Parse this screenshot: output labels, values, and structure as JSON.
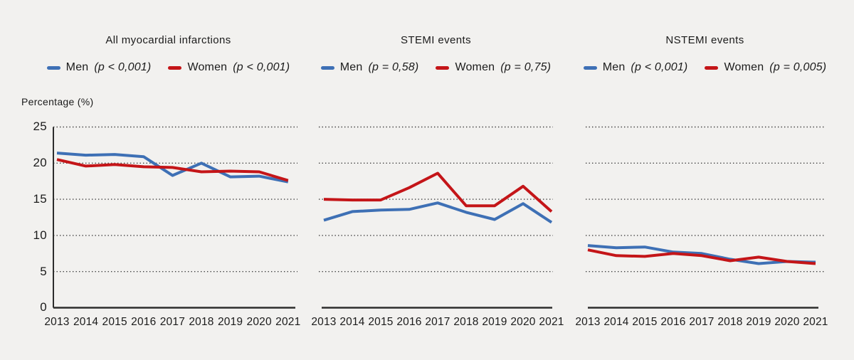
{
  "figure": {
    "background": "#f2f1ef",
    "y_axis_label": "Percentage (%)"
  },
  "colors": {
    "men": "#3e70b5",
    "women": "#c41518",
    "grid": "#3f3f3f",
    "axis": "#2d2d2d",
    "text": "#1b1b1b"
  },
  "y_axis": {
    "ticks": [
      "25",
      "20",
      "15",
      "10",
      "5",
      "0"
    ]
  },
  "years": [
    "2013",
    "2014",
    "2015",
    "2016",
    "2017",
    "2018",
    "2019",
    "2020",
    "2021"
  ],
  "chart_data": [
    {
      "type": "line",
      "title": "All myocardial infarctions",
      "xlabel": "",
      "ylabel": "Percentage (%)",
      "ylim": [
        0,
        25
      ],
      "yticks": [
        0,
        5,
        10,
        15,
        20,
        25
      ],
      "grid": "dotted-horizontal",
      "legend_position": "top",
      "categories": [
        "2013",
        "2014",
        "2015",
        "2016",
        "2017",
        "2018",
        "2019",
        "2020",
        "2021"
      ],
      "series": [
        {
          "name": "Men",
          "p_label": "(p < 0,001)",
          "color": "#3e70b5",
          "values": [
            21.4,
            21.1,
            21.2,
            20.9,
            18.3,
            20.0,
            18.1,
            18.2,
            17.4
          ]
        },
        {
          "name": "Women",
          "p_label": "(p < 0,001)",
          "color": "#c41518",
          "values": [
            20.5,
            19.6,
            19.8,
            19.5,
            19.4,
            18.8,
            18.9,
            18.8,
            17.6
          ]
        }
      ]
    },
    {
      "type": "line",
      "title": "STEMI events",
      "xlabel": "",
      "ylabel": "Percentage (%)",
      "ylim": [
        0,
        25
      ],
      "yticks": [
        0,
        5,
        10,
        15,
        20,
        25
      ],
      "grid": "dotted-horizontal",
      "legend_position": "top",
      "categories": [
        "2013",
        "2014",
        "2015",
        "2016",
        "2017",
        "2018",
        "2019",
        "2020",
        "2021"
      ],
      "series": [
        {
          "name": "Men",
          "p_label": "(p = 0,58)",
          "color": "#3e70b5",
          "values": [
            12.1,
            13.3,
            13.5,
            13.6,
            14.5,
            13.2,
            12.2,
            14.4,
            11.8
          ]
        },
        {
          "name": "Women",
          "p_label": "(p = 0,75)",
          "color": "#c41518",
          "values": [
            15.0,
            14.9,
            14.9,
            16.6,
            18.6,
            14.1,
            14.1,
            16.8,
            13.3
          ]
        }
      ]
    },
    {
      "type": "line",
      "title": "NSTEMI events",
      "xlabel": "",
      "ylabel": "Percentage (%)",
      "ylim": [
        0,
        25
      ],
      "yticks": [
        0,
        5,
        10,
        15,
        20,
        25
      ],
      "grid": "dotted-horizontal",
      "legend_position": "top",
      "categories": [
        "2013",
        "2014",
        "2015",
        "2016",
        "2017",
        "2018",
        "2019",
        "2020",
        "2021"
      ],
      "series": [
        {
          "name": "Men",
          "p_label": "(p < 0,001)",
          "color": "#3e70b5",
          "values": [
            8.6,
            8.3,
            8.4,
            7.7,
            7.5,
            6.7,
            6.1,
            6.4,
            6.3
          ]
        },
        {
          "name": "Women",
          "p_label": "(p = 0,005)",
          "color": "#c41518",
          "values": [
            8.0,
            7.2,
            7.1,
            7.5,
            7.2,
            6.5,
            7.0,
            6.4,
            6.1
          ]
        }
      ]
    }
  ]
}
